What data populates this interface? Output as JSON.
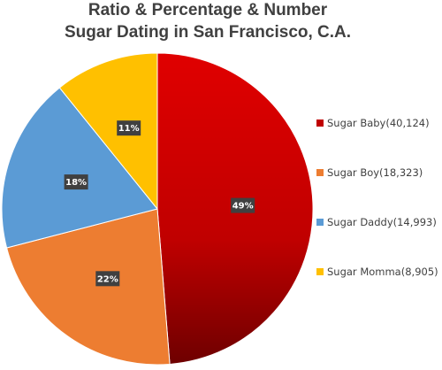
{
  "chart_data": {
    "type": "pie",
    "title_lines": [
      "Ratio & Percentage & Number",
      "Sugar Dating in San Francisco, C.A."
    ],
    "slices": [
      {
        "legend": "Sugar Baby(40,124)",
        "value": 40124,
        "percent_label": "49%",
        "color": "#d81010",
        "dark_color": "#7a0000"
      },
      {
        "legend": "Sugar Boy(18,323)",
        "value": 18323,
        "percent_label": "22%",
        "color": "#ed7d31",
        "dark_color": "#ed7d31"
      },
      {
        "legend": "Sugar Daddy(14,993)",
        "value": 14993,
        "percent_label": "18%",
        "color": "#5b9bd5",
        "dark_color": "#5b9bd5"
      },
      {
        "legend": "Sugar Momma(8,905)",
        "value": 8905,
        "percent_label": "11%",
        "color": "#ffc000",
        "dark_color": "#ffc000"
      }
    ],
    "start_angle": "12 o'clock",
    "direction": "clockwise",
    "legend_position": "right",
    "data_label_style": "dark box, white bold text"
  }
}
